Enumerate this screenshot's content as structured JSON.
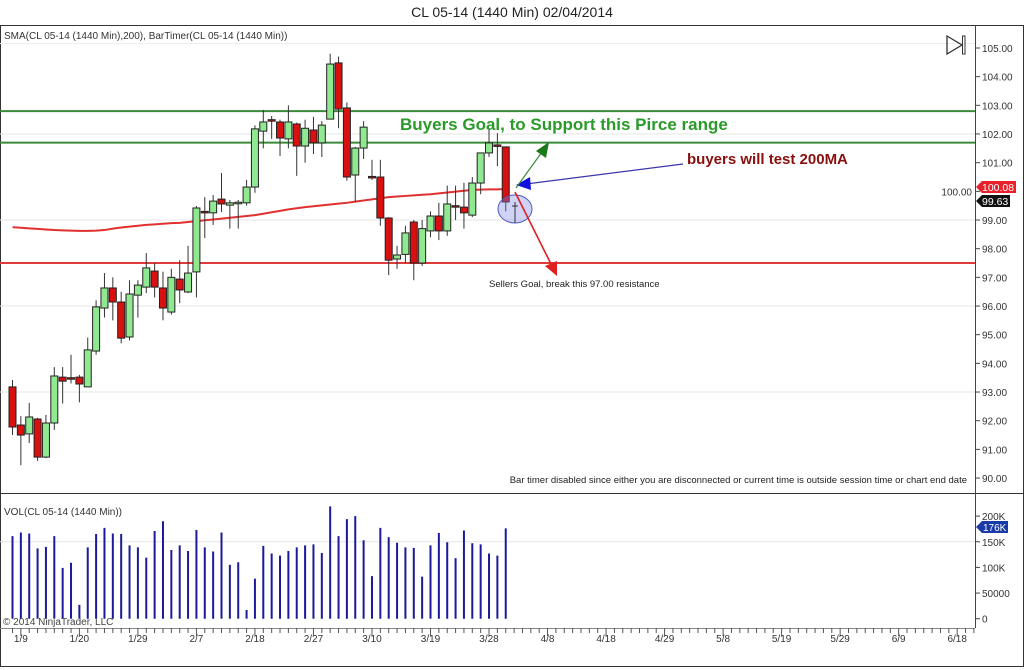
{
  "window": {
    "title": "CL 05-14 (1440 Min)  02/04/2014"
  },
  "price_panel": {
    "indicator_label": "SMA(CL 05-14 (1440 Min),200), BarTimer(CL 05-14 (1440 Min))",
    "bar_timer_message": "Bar timer disabled since either you are disconnected or current time is outside session time or chart end date",
    "scroll_end_icon": "skip-to-end-icon",
    "sma_tag": "100.08",
    "last_price_tag": "99.63",
    "colors": {
      "up": "#90e890",
      "down": "#d81010",
      "sma": "#e03030",
      "sma_tag": "#e8202a",
      "last_tag": "#111111"
    }
  },
  "volume_panel": {
    "indicator_label": "VOL(CL 05-14 (1440 Min))",
    "copyright": "© 2014 NinjaTrader, LLC",
    "last_volume_tag": "176K",
    "bar_color": "#1a1a9a"
  },
  "annotations": {
    "buyers_goal": {
      "text": "Buyers Goal, to Support this Pirce range",
      "color": "#2a9a2a"
    },
    "buyers_test": {
      "text": "buyers will test 200MA",
      "color": "#8a1010"
    },
    "sellers_goal": {
      "text": "Sellers Goal, break this 97.00 resistance",
      "color": "#222222"
    },
    "support_lines": [
      102.8,
      101.7
    ],
    "resistance_line": 97.5
  },
  "chart_data": [
    {
      "type": "candlestick",
      "title": "CL 05-14 (1440 Min)  02/04/2014",
      "ylim": [
        89.7,
        105.3
      ],
      "y_ticks": [
        "105.00",
        "104.00",
        "103.00",
        "102.00",
        "101.00",
        "100.00",
        "99.00",
        "98.00",
        "97.00",
        "96.00",
        "95.00",
        "94.00",
        "93.00",
        "92.00",
        "91.00",
        "90.00"
      ],
      "grid": true,
      "x_tick_labels": [
        "1/9",
        "1/20",
        "1/29",
        "2/7",
        "2/18",
        "2/27",
        "3/10",
        "3/19",
        "3/28",
        "4/8",
        "4/18",
        "4/29",
        "5/8",
        "5/19",
        "5/29",
        "6/9",
        "6/18"
      ],
      "ohlc": [
        [
          93.18,
          93.42,
          91.5,
          91.78
        ],
        [
          91.85,
          92.16,
          90.45,
          91.5
        ],
        [
          91.54,
          92.62,
          91.22,
          92.13
        ],
        [
          92.06,
          92.1,
          90.6,
          90.73
        ],
        [
          90.73,
          92.2,
          90.7,
          91.92
        ],
        [
          91.92,
          93.87,
          91.68,
          93.56
        ],
        [
          93.52,
          93.87,
          92.6,
          93.38
        ],
        [
          93.5,
          94.3,
          93.3,
          93.48
        ],
        [
          93.52,
          93.6,
          92.64,
          93.28
        ],
        [
          93.18,
          94.9,
          93.18,
          94.47
        ],
        [
          94.43,
          96.2,
          94.3,
          95.97
        ],
        [
          95.93,
          97.15,
          95.6,
          96.63
        ],
        [
          96.63,
          97.0,
          95.5,
          96.14
        ],
        [
          96.14,
          96.5,
          94.7,
          94.88
        ],
        [
          94.92,
          96.9,
          94.8,
          96.42
        ],
        [
          96.38,
          96.9,
          95.6,
          96.73
        ],
        [
          96.66,
          97.85,
          96.45,
          97.33
        ],
        [
          97.22,
          97.5,
          96.3,
          96.66
        ],
        [
          96.63,
          97.2,
          95.5,
          95.93
        ],
        [
          95.79,
          97.3,
          95.7,
          97.0
        ],
        [
          96.94,
          97.6,
          96.1,
          96.56
        ],
        [
          96.49,
          98.1,
          96.45,
          97.15
        ],
        [
          97.19,
          99.49,
          96.3,
          99.42
        ],
        [
          99.3,
          99.8,
          98.37,
          99.25
        ],
        [
          99.25,
          99.87,
          98.83,
          99.66
        ],
        [
          99.73,
          100.64,
          99.28,
          99.56
        ],
        [
          99.52,
          99.7,
          98.7,
          99.6
        ],
        [
          99.58,
          99.7,
          98.7,
          99.62
        ],
        [
          99.6,
          100.4,
          99.5,
          100.15
        ],
        [
          100.15,
          102.3,
          99.95,
          102.18
        ],
        [
          102.1,
          102.84,
          101.5,
          102.42
        ],
        [
          102.5,
          102.63,
          101.83,
          102.48
        ],
        [
          102.42,
          102.5,
          101.23,
          101.86
        ],
        [
          101.83,
          103.0,
          101.5,
          102.42
        ],
        [
          102.35,
          102.4,
          100.54,
          101.58
        ],
        [
          101.58,
          102.5,
          101.0,
          102.2
        ],
        [
          102.14,
          102.6,
          101.3,
          101.69
        ],
        [
          101.69,
          102.45,
          101.2,
          102.31
        ],
        [
          102.52,
          104.8,
          102.52,
          104.44
        ],
        [
          104.48,
          104.7,
          102.2,
          102.87
        ],
        [
          102.91,
          103.1,
          100.37,
          100.5
        ],
        [
          100.57,
          101.55,
          99.63,
          101.51
        ],
        [
          101.51,
          102.45,
          101.13,
          102.24
        ],
        [
          100.52,
          101.1,
          100.4,
          100.48
        ],
        [
          100.5,
          101.1,
          98.8,
          99.07
        ],
        [
          99.07,
          99.1,
          97.08,
          97.6
        ],
        [
          97.64,
          98.1,
          97.3,
          97.78
        ],
        [
          97.8,
          98.8,
          97.5,
          98.55
        ],
        [
          98.93,
          99.0,
          96.9,
          97.5
        ],
        [
          97.5,
          99.0,
          97.4,
          98.7
        ],
        [
          98.62,
          99.3,
          98.4,
          99.14
        ],
        [
          99.14,
          99.6,
          98.3,
          98.62
        ],
        [
          98.62,
          100.2,
          98.45,
          99.56
        ],
        [
          99.5,
          100.2,
          99.0,
          99.45
        ],
        [
          99.45,
          100.3,
          98.7,
          99.25
        ],
        [
          99.17,
          100.5,
          99.1,
          100.29
        ],
        [
          100.29,
          101.34,
          99.9,
          101.34
        ],
        [
          101.34,
          102.14,
          101.2,
          101.69
        ],
        [
          101.62,
          102.03,
          100.88,
          101.58
        ],
        [
          101.55,
          101.55,
          99.3,
          99.63
        ]
      ],
      "sma_200": [
        98.75,
        98.73,
        98.71,
        98.69,
        98.67,
        98.65,
        98.64,
        98.63,
        98.62,
        98.62,
        98.63,
        98.65,
        98.7,
        98.74,
        98.77,
        98.8,
        98.83,
        98.85,
        98.87,
        98.89,
        98.9,
        98.93,
        98.96,
        98.99,
        99.02,
        99.05,
        99.08,
        99.11,
        99.14,
        99.17,
        99.22,
        99.27,
        99.32,
        99.37,
        99.41,
        99.45,
        99.48,
        99.51,
        99.54,
        99.57,
        99.6,
        99.64,
        99.68,
        99.72,
        99.76,
        99.8,
        99.82,
        99.84,
        99.86,
        99.88,
        99.9,
        99.93,
        99.96,
        99.99,
        100.02,
        100.05,
        100.06,
        100.07,
        100.07,
        100.08
      ]
    },
    {
      "type": "bar",
      "ylim": [
        0,
        230000
      ],
      "y_ticks": [
        "200K",
        "150K",
        "100K",
        "50000",
        "0"
      ],
      "values": [
        161000,
        168000,
        166000,
        137000,
        140000,
        161000,
        99000,
        109000,
        27000,
        139000,
        165000,
        177000,
        166000,
        165000,
        143000,
        139000,
        119000,
        171000,
        190000,
        134000,
        143000,
        132000,
        173000,
        139000,
        131000,
        168000,
        105000,
        110000,
        17000,
        78000,
        142000,
        127000,
        123000,
        132000,
        139000,
        143000,
        145000,
        128000,
        219000,
        161000,
        194000,
        200000,
        153000,
        83000,
        177000,
        159000,
        148000,
        139000,
        138000,
        82000,
        143000,
        167000,
        149000,
        118000,
        172000,
        147000,
        145000,
        127000,
        123000,
        176000
      ]
    }
  ]
}
